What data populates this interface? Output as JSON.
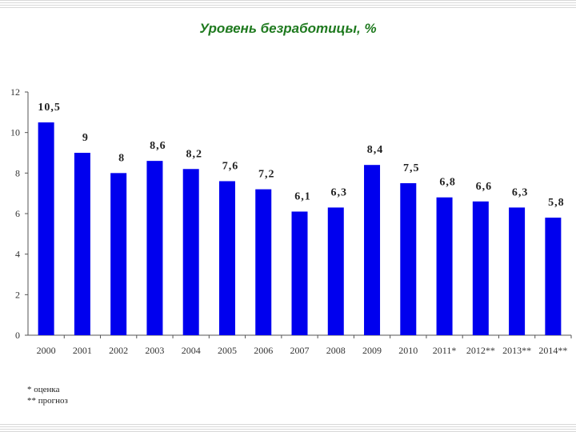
{
  "title": "Уровень безработицы, %",
  "footnotes": [
    "* оценка",
    "** прогноз"
  ],
  "colors": {
    "bar": "#0000ee",
    "title": "#1f7a1f"
  },
  "chart_data": {
    "type": "bar",
    "title": "Уровень безработицы, %",
    "categories": [
      "2000",
      "2001",
      "2002",
      "2003",
      "2004",
      "2005",
      "2006",
      "2007",
      "2008",
      "2009",
      "2010",
      "2011*",
      "2012**",
      "2013**",
      "2014**"
    ],
    "values": [
      10.5,
      9,
      8,
      8.6,
      8.2,
      7.6,
      7.2,
      6.1,
      6.3,
      8.4,
      7.5,
      6.8,
      6.6,
      6.3,
      5.8
    ],
    "data_labels": [
      "10,5",
      "9",
      "8",
      "8,6",
      "8,2",
      "7,6",
      "7,2",
      "6,1",
      "6,3",
      "8,4",
      "7,5",
      "6,8",
      "6,6",
      "6,3",
      "5,8"
    ],
    "ylim": [
      0,
      12
    ],
    "yticks": [
      0,
      2,
      4,
      6,
      8,
      10,
      12
    ],
    "grid": false,
    "legend": "none"
  }
}
